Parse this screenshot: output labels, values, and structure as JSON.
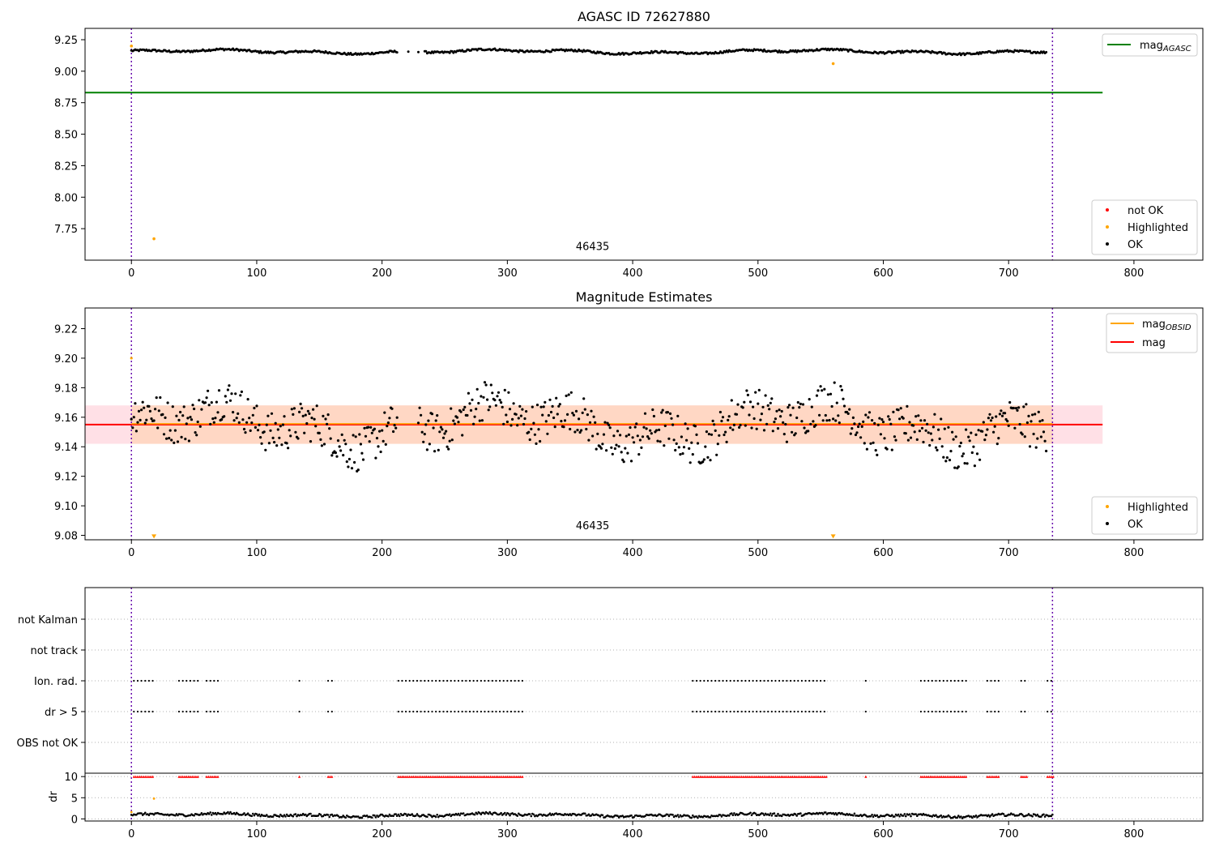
{
  "chart_data": [
    {
      "id": "agasc",
      "type": "scatter",
      "title": "AGASC ID 72627880",
      "xlim": [
        -37,
        855
      ],
      "ylim": [
        7.5,
        9.34
      ],
      "xticks": [
        0,
        100,
        200,
        300,
        400,
        500,
        600,
        700,
        800
      ],
      "xtick_labels": [
        "0",
        "100",
        "200",
        "300",
        "400",
        "500",
        "600",
        "700",
        "800"
      ],
      "yticks": [
        7.75,
        8.0,
        8.25,
        8.5,
        8.75,
        9.0,
        9.25
      ],
      "ytick_labels": [
        "7.75",
        "8.00",
        "8.25",
        "8.50",
        "8.75",
        "9.00",
        "9.25"
      ],
      "vlines": [
        0,
        735
      ],
      "obsid_label": {
        "text": "46435",
        "x": 368,
        "y": 7.58
      },
      "lines": [
        {
          "name": "mag_AGASC",
          "y": 8.83,
          "x": [
            -37,
            775
          ],
          "color": "#008000"
        }
      ],
      "legend_lines": {
        "position": "upper right",
        "items": [
          {
            "text": "mag",
            "sub": "AGASC",
            "color": "#008000"
          }
        ]
      },
      "legend_points": {
        "position": "lower right",
        "items": [
          {
            "text": "not OK",
            "color": "#ff0000"
          },
          {
            "text": "Highlighted",
            "color": "#ffa500"
          },
          {
            "text": "OK",
            "color": "#000000"
          }
        ]
      },
      "series": [
        {
          "name": "OK",
          "color": "#000000",
          "x_from": 0,
          "x_to": 730,
          "mean": 9.155,
          "amp": 0.022,
          "jitter": 0.008,
          "gaps": [
            [
              213,
              220
            ],
            [
              222,
              228
            ],
            [
              230,
              233
            ]
          ]
        },
        {
          "name": "Highlighted",
          "color": "#ffa500",
          "points": [
            [
              0,
              9.2
            ],
            [
              18,
              7.67
            ],
            [
              560,
              9.06
            ]
          ]
        }
      ]
    },
    {
      "id": "estimates",
      "type": "scatter",
      "title": "Magnitude Estimates",
      "xlim": [
        -37,
        855
      ],
      "ylim": [
        9.077,
        9.234
      ],
      "xticks": [
        0,
        100,
        200,
        300,
        400,
        500,
        600,
        700,
        800
      ],
      "xtick_labels": [
        "0",
        "100",
        "200",
        "300",
        "400",
        "500",
        "600",
        "700",
        "800"
      ],
      "yticks": [
        9.08,
        9.1,
        9.12,
        9.14,
        9.16,
        9.18,
        9.2,
        9.22
      ],
      "ytick_labels": [
        "9.08",
        "9.10",
        "9.12",
        "9.14",
        "9.16",
        "9.18",
        "9.20",
        "9.22"
      ],
      "vlines": [
        0,
        735
      ],
      "obsid_label": {
        "text": "46435",
        "x": 368,
        "y": 9.084
      },
      "band": {
        "y_low": 9.142,
        "y_high": 9.168,
        "x": [
          -37,
          775
        ],
        "outer_color": "#ffe0e6",
        "inner_color": "#ffd7c4",
        "inner_x": [
          0,
          735
        ]
      },
      "lines": [
        {
          "name": "mag",
          "y": 9.155,
          "x": [
            -37,
            775
          ],
          "color": "#ff0000"
        }
      ],
      "legend_lines": {
        "position": "upper right",
        "items": [
          {
            "text": "mag",
            "sub": "OBSID",
            "color": "#ffa500"
          },
          {
            "text": "mag",
            "sub": "",
            "color": "#ff0000"
          }
        ]
      },
      "legend_points": {
        "position": "lower right",
        "items": [
          {
            "text": "Highlighted",
            "color": "#ffa500"
          },
          {
            "text": "OK",
            "color": "#000000"
          }
        ]
      },
      "series": [
        {
          "name": "OK",
          "color": "#000000",
          "x_from": 0,
          "x_to": 730,
          "mean": 9.155,
          "amp": 0.02,
          "jitter": 0.014,
          "gaps": [
            [
              213,
              228
            ]
          ]
        },
        {
          "name": "Highlighted",
          "color": "#ffa500",
          "points": [
            [
              0,
              9.2
            ],
            [
              18,
              9.079
            ],
            [
              560,
              9.079
            ]
          ]
        }
      ]
    },
    {
      "id": "flags",
      "type": "scatter",
      "xlim": [
        -37,
        855
      ],
      "categories": [
        "OBS not OK",
        "dr > 5",
        "Ion. rad.",
        "not track",
        "not Kalman"
      ],
      "vlines": [
        0,
        735
      ],
      "flag_ranges": [
        [
          2,
          18
        ],
        [
          38,
          53
        ],
        [
          60,
          69
        ],
        [
          134,
          135
        ],
        [
          157,
          160
        ],
        [
          213,
          313
        ],
        [
          448,
          555
        ],
        [
          586,
          587
        ],
        [
          630,
          666
        ],
        [
          683,
          693
        ],
        [
          710,
          715
        ],
        [
          731,
          736
        ]
      ],
      "flag_rows": [
        "dr > 5",
        "Ion. rad."
      ]
    },
    {
      "id": "dr",
      "type": "scatter",
      "ylabel": "dr",
      "xlim": [
        -37,
        855
      ],
      "ylim": [
        -0.5,
        10.8
      ],
      "xticks": [
        0,
        100,
        200,
        300,
        400,
        500,
        600,
        700,
        800
      ],
      "xtick_labels": [
        "0",
        "100",
        "200",
        "300",
        "400",
        "500",
        "600",
        "700",
        "800"
      ],
      "yticks": [
        0,
        5,
        10
      ],
      "ytick_labels": [
        "0",
        "5",
        "10"
      ],
      "vlines": [
        0,
        735
      ],
      "capped_value": 10,
      "series": [
        {
          "name": "dr",
          "color": "#000000",
          "x_from": 0,
          "x_to": 735,
          "mean": 0.9,
          "amp": 0.5,
          "jitter": 0.3
        },
        {
          "name": "Highlighted",
          "color": "#ffa500",
          "points": [
            [
              0,
              1.6
            ],
            [
              18,
              4.8
            ]
          ]
        }
      ]
    }
  ]
}
